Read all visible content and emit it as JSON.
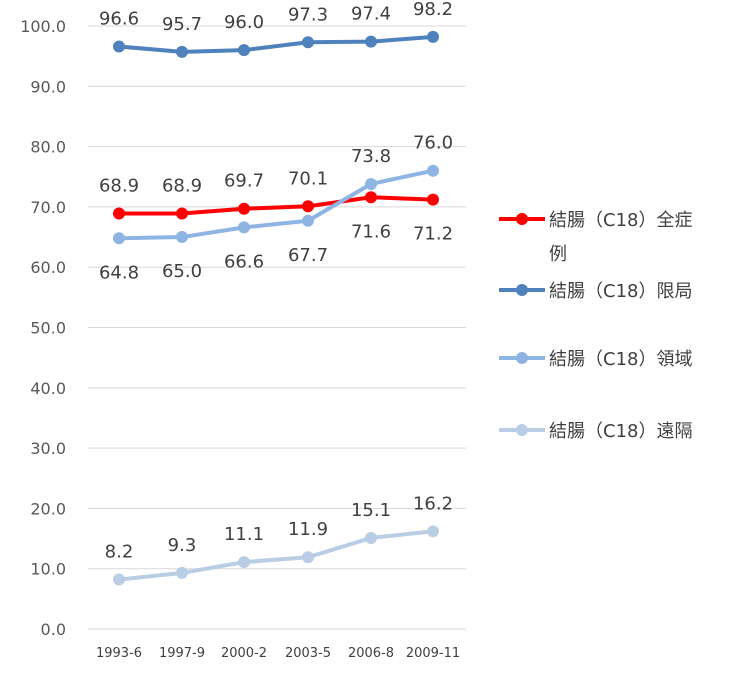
{
  "chart_data": {
    "type": "line",
    "title": "",
    "xlabel": "",
    "ylabel": "",
    "ylim": [
      0,
      100
    ],
    "yticks": [
      "0.0",
      "10.0",
      "20.0",
      "30.0",
      "40.0",
      "50.0",
      "60.0",
      "70.0",
      "80.0",
      "90.0",
      "100.0"
    ],
    "categories": [
      "1993-6",
      "1997-9",
      "2000-2",
      "2003-5",
      "2006-8",
      "2009-11"
    ],
    "legend_position": "right",
    "grid": true,
    "series": [
      {
        "name": "結腸（C18）全症例",
        "color": "#ff0000",
        "values": [
          68.9,
          68.9,
          69.7,
          70.1,
          71.6,
          71.2
        ],
        "labels": [
          "68.9",
          "68.9",
          "69.7",
          "70.1",
          "71.6",
          "71.2"
        ],
        "label_pos": [
          "above",
          "above",
          "above",
          "above",
          "below",
          "below"
        ]
      },
      {
        "name": "結腸（C18）限局",
        "color": "#4f81bd",
        "values": [
          96.6,
          95.7,
          96.0,
          97.3,
          97.4,
          98.2
        ],
        "labels": [
          "96.6",
          "95.7",
          "96.0",
          "97.3",
          "97.4",
          "98.2"
        ],
        "label_pos": [
          "above",
          "above",
          "above",
          "above",
          "above",
          "above"
        ]
      },
      {
        "name": "結腸（C18）領域",
        "color": "#8eb4e3",
        "values": [
          64.8,
          65.0,
          66.6,
          67.7,
          73.8,
          76.0
        ],
        "labels": [
          "64.8",
          "65.0",
          "66.6",
          "67.7",
          "73.8",
          "76.0"
        ],
        "label_pos": [
          "below",
          "below",
          "below",
          "below",
          "above",
          "above"
        ]
      },
      {
        "name": "結腸（C18）遠隔",
        "color": "#b9cde5",
        "values": [
          8.2,
          9.3,
          11.1,
          11.9,
          15.1,
          16.2
        ],
        "labels": [
          "8.2",
          "9.3",
          "11.1",
          "11.9",
          "15.1",
          "16.2"
        ],
        "label_pos": [
          "above",
          "above",
          "above",
          "above",
          "above",
          "above"
        ]
      }
    ]
  }
}
